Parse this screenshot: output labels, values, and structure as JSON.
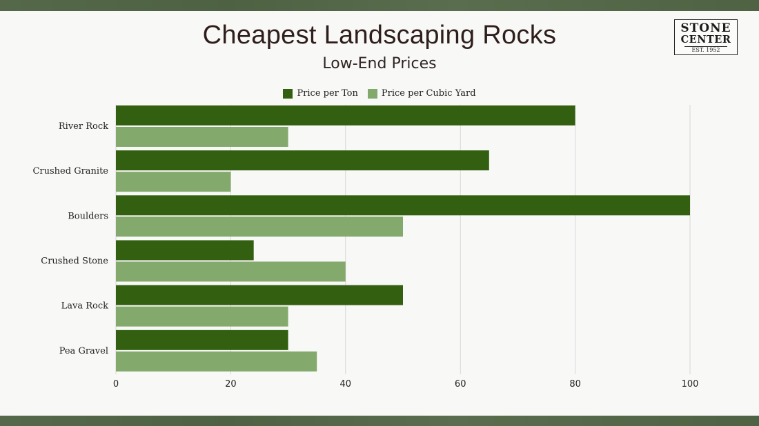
{
  "colors": {
    "ton": "#335f10",
    "cubic": "#83aa6c",
    "band": "#54684a"
  },
  "logo": {
    "line1": "STONE",
    "line2": "CENTER",
    "line3": "EST. 1952"
  },
  "chart_data": {
    "type": "bar",
    "orientation": "horizontal",
    "title": "Cheapest Landscaping Rocks",
    "subtitle": "Low-End Prices",
    "categories": [
      "River Rock",
      "Crushed Granite",
      "Boulders",
      "Crushed Stone",
      "Lava Rock",
      "Pea Gravel"
    ],
    "series": [
      {
        "name": "Price per Ton",
        "values": [
          80,
          65,
          100,
          24,
          50,
          30
        ]
      },
      {
        "name": "Price per Cubic Yard",
        "values": [
          30,
          20,
          50,
          40,
          30,
          35
        ]
      }
    ],
    "xticks": [
      "0",
      "20",
      "40",
      "60",
      "80",
      "100"
    ],
    "xlim": [
      0,
      100
    ],
    "grid": "vertical",
    "legend": "top-center"
  }
}
